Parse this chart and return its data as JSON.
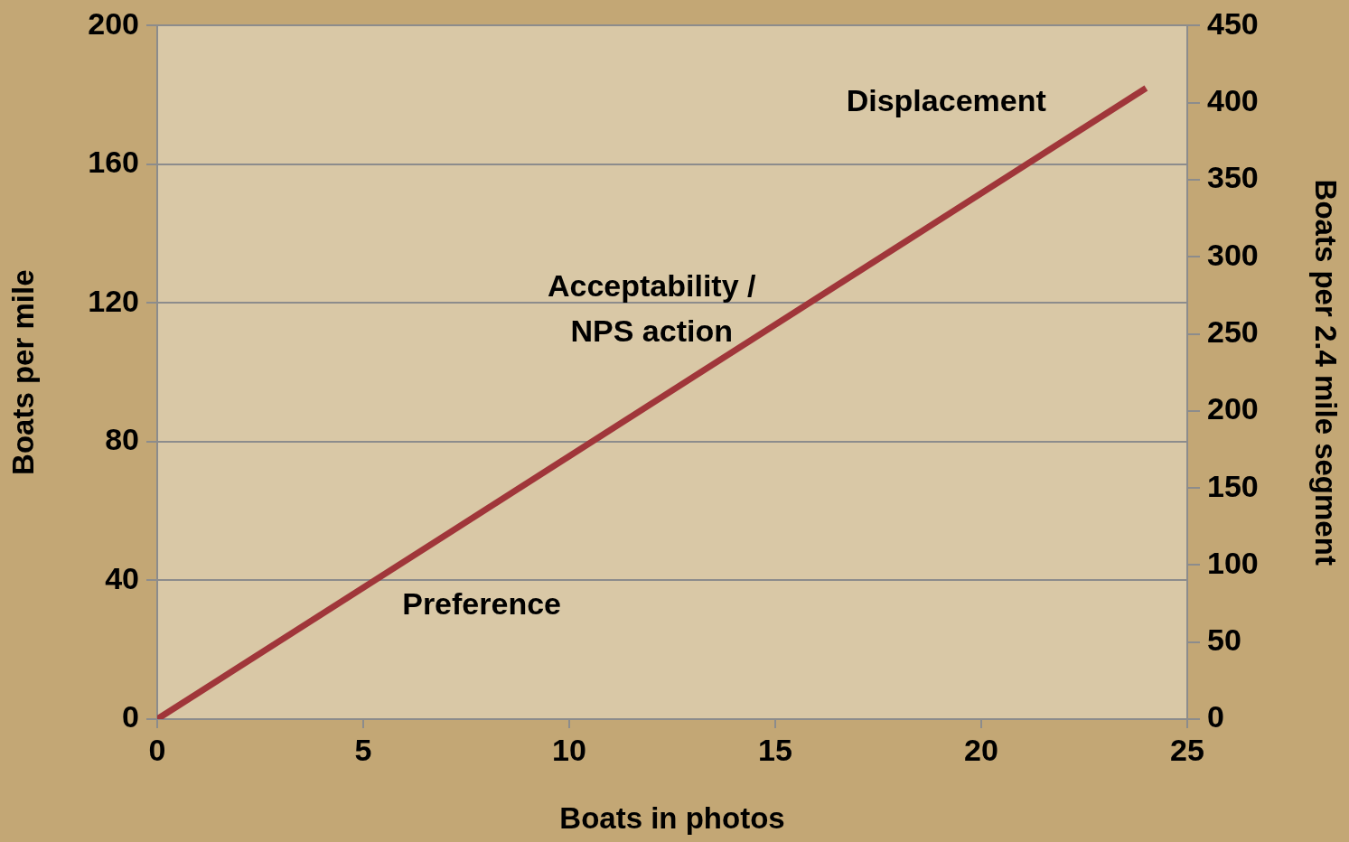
{
  "chart_data": {
    "type": "line",
    "xlabel": "Boats in photos",
    "ylabel": "Boats per mile",
    "y2label": "Boats per 2.4 mile segment",
    "series": [
      {
        "color": "#a0363a",
        "x": [
          0,
          24
        ],
        "values": [
          0,
          182
        ]
      }
    ],
    "xlim": [
      0,
      25
    ],
    "xticks": [
      0,
      5,
      10,
      15,
      20,
      25
    ],
    "ylim": [
      0,
      200
    ],
    "yticks": [
      0,
      40,
      80,
      120,
      160,
      200
    ],
    "y2lim": [
      0,
      450
    ],
    "y2ticks": [
      0,
      50,
      100,
      150,
      200,
      250,
      300,
      350,
      400,
      450
    ],
    "grid": "y",
    "legend": false,
    "marker": "none",
    "line_style": "solid",
    "annotations": [
      "Displacement",
      "Acceptability /\nNPS action",
      "Preference"
    ]
  }
}
